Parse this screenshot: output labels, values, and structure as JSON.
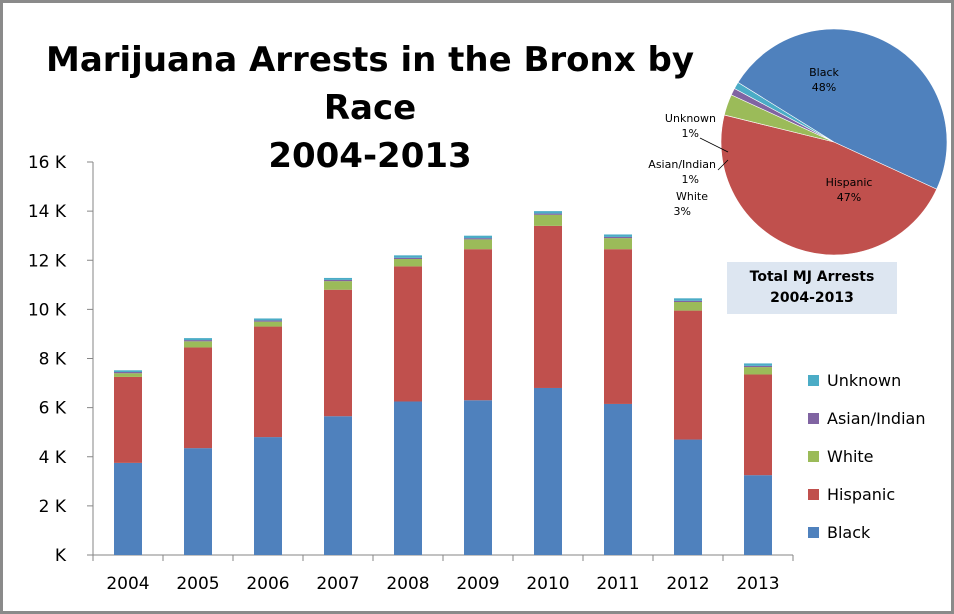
{
  "title": {
    "line1": "Marijuana Arrests in the Bronx by Race",
    "line2": "2004-2013"
  },
  "chart_data": [
    {
      "type": "bar",
      "stacked": true,
      "title": "Marijuana Arrests in the Bronx by Race 2004-2013",
      "categories": [
        "2004",
        "2005",
        "2006",
        "2007",
        "2008",
        "2009",
        "2010",
        "2011",
        "2012",
        "2013"
      ],
      "series": [
        {
          "name": "Black",
          "color": "#4f81bd",
          "values": [
            3750,
            4350,
            4800,
            5650,
            6250,
            6300,
            6800,
            6150,
            4700,
            3250
          ]
        },
        {
          "name": "Hispanic",
          "color": "#c0504d",
          "values": [
            3500,
            4100,
            4500,
            5150,
            5500,
            6150,
            6600,
            6300,
            5250,
            4100
          ]
        },
        {
          "name": "White",
          "color": "#9bbb59",
          "values": [
            150,
            250,
            200,
            350,
            300,
            400,
            450,
            450,
            350,
            300
          ]
        },
        {
          "name": "Asian/Indian",
          "color": "#8064a2",
          "values": [
            50,
            50,
            50,
            50,
            50,
            50,
            50,
            50,
            50,
            50
          ]
        },
        {
          "name": "Unknown",
          "color": "#4bacc6",
          "values": [
            70,
            80,
            80,
            80,
            100,
            100,
            100,
            100,
            100,
            100
          ]
        }
      ],
      "ylim": [
        0,
        16000
      ],
      "yticks": [
        0,
        2000,
        4000,
        6000,
        8000,
        10000,
        12000,
        14000,
        16000
      ],
      "ytick_labels": [
        "K",
        "2 K",
        "4 K",
        "6 K",
        "8 K",
        "10 K",
        "12 K",
        "14 K",
        "16 K"
      ],
      "grid": false,
      "legend_position": "right"
    },
    {
      "type": "pie",
      "title": "Total MJ Arrests 2004-2013",
      "caption_line1": "Total MJ Arrests",
      "caption_line2": "2004-2013",
      "slices": [
        {
          "name": "Black",
          "pct_label": "48%",
          "value": 48,
          "color": "#4f81bd"
        },
        {
          "name": "Hispanic",
          "pct_label": "47%",
          "value": 47,
          "color": "#c0504d"
        },
        {
          "name": "White",
          "pct_label": "3%",
          "value": 3,
          "color": "#9bbb59"
        },
        {
          "name": "Asian/Indian",
          "pct_label": "1%",
          "value": 1,
          "color": "#8064a2"
        },
        {
          "name": "Unknown",
          "pct_label": "1%",
          "value": 1,
          "color": "#4bacc6"
        }
      ]
    }
  ],
  "legend": [
    {
      "label": "Unknown",
      "color": "#4bacc6"
    },
    {
      "label": "Asian/Indian",
      "color": "#8064a2"
    },
    {
      "label": "White",
      "color": "#9bbb59"
    },
    {
      "label": "Hispanic",
      "color": "#c0504d"
    },
    {
      "label": "Black",
      "color": "#4f81bd"
    }
  ]
}
